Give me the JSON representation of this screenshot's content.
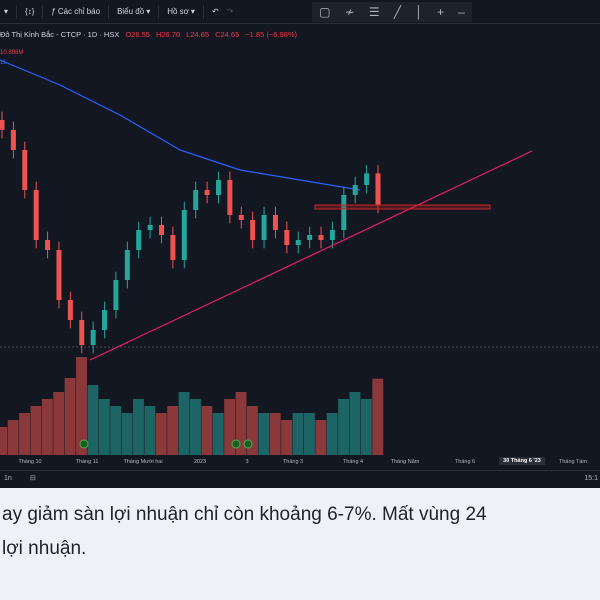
{
  "toolbar": {
    "items": [
      "Các chỉ báo",
      "Biểu đồ",
      "Hồ sơ"
    ],
    "icons": [
      "indicator-icon",
      "chevron-down-icon",
      "undo-icon",
      "redo-icon"
    ],
    "draw_tools": [
      "rectangle-icon",
      "path-icon",
      "fib-icon",
      "trendline-icon",
      "vertical-line-icon",
      "crosshair-icon",
      "horizontal-line-icon"
    ]
  },
  "legend": {
    "title": "Đô Thị Kinh Bắc - CTCP · 1D · HSX",
    "open": "O26.55",
    "high": "H26.70",
    "low": "L24.65",
    "close": "C24.65",
    "change": "−1.85 (−6.98%)",
    "volume": "10.898M",
    "ma": "11"
  },
  "colors": {
    "up": "#26a69a",
    "down": "#ef5350",
    "ma": "#2962ff",
    "trendline": "#e91e63",
    "zone": "#b71c1c"
  },
  "chart_data": {
    "type": "candlestick",
    "closes": [
      29.15,
      27.95,
      25.55,
      22.55,
      21.95,
      18.95,
      17.75,
      16.25,
      17.15,
      18.35,
      20.15,
      21.95,
      23.15,
      23.45,
      22.85,
      21.35,
      24.35,
      25.55,
      25.25,
      26.15,
      24.05,
      23.75,
      22.55,
      24.05,
      23.15,
      22.25,
      22.55,
      22.85,
      22.55,
      23.15,
      25.25,
      25.85,
      26.55,
      24.65
    ],
    "volumes": [
      4,
      5,
      6,
      7,
      8,
      9,
      11,
      14,
      10,
      8,
      7,
      6,
      8,
      7,
      6,
      7,
      9,
      8,
      7,
      6,
      8,
      9,
      7,
      6,
      6,
      5,
      6,
      6,
      5,
      6,
      8,
      9,
      8,
      10.9
    ],
    "ma": [
      33.35,
      32.6,
      31.85,
      30.95,
      30.05,
      29.0,
      27.95,
      27.35,
      26.75,
      26.45,
      26.15,
      25.85,
      25.55
    ],
    "trendline": "ascending support",
    "zone_price": 24.65
  },
  "time_axis": [
    "Tháng 10",
    "Tháng 11",
    "Tháng Mười hai",
    "2023",
    "3",
    "Tháng 3",
    "Tháng 4",
    "Tháng Năm",
    "Tháng 6",
    "30 Tháng 6 '23",
    "Tháng Tám"
  ],
  "bottombar": {
    "range": "1n",
    "time": "15:1"
  },
  "caption": {
    "line1": "ay giảm sàn lợi nhuận chỉ còn khoảng 6-7%. Mất vùng 24",
    "line2": "lợi nhuận."
  }
}
